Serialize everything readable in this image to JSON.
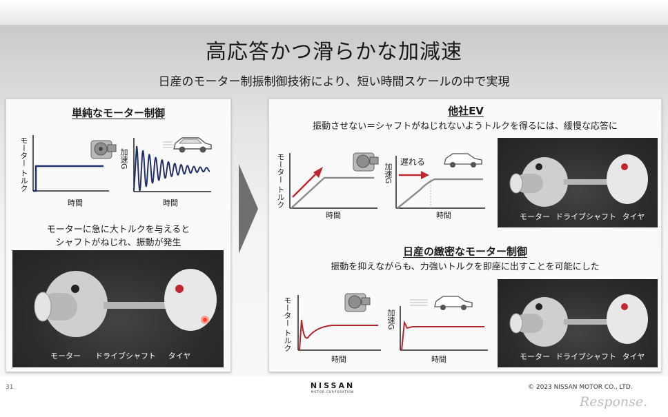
{
  "header": {
    "title": "高応答かつ滑らかな加減速",
    "subtitle": "日産のモーター制振制御技術により、短い時間スケールの中で実現"
  },
  "left_panel": {
    "title": "単純なモーター制御",
    "chart1": {
      "ylabel": "モーター トルク",
      "xlabel": "時間"
    },
    "chart2": {
      "ylabel": "加速G",
      "xlabel": "時間"
    },
    "description_line1": "モーターに急に大トルクを与えると",
    "description_line2": "シャフトがねじれ、振動が発生",
    "diagram": {
      "motor": "モーター",
      "shaft": "ドライブシャフト",
      "tire": "タイヤ"
    }
  },
  "right_top": {
    "title": "他社EV",
    "description": "振動させない＝シャフトがねじれないようトルクを得るには、緩慢な応答に",
    "chart1": {
      "ylabel": "モーター トルク",
      "xlabel": "時間"
    },
    "chart2": {
      "ylabel": "加速G",
      "xlabel": "時間",
      "annotation": "遅れる"
    },
    "diagram": {
      "motor": "モーター",
      "shaft": "ドライブシャフト",
      "tire": "タイヤ"
    }
  },
  "right_bottom": {
    "title": "日産の緻密なモーター制御",
    "description": "振動を抑えながらも、力強いトルクを即座に出すことを可能にした",
    "chart1": {
      "ylabel": "モーター トルク",
      "xlabel": "時間"
    },
    "chart2": {
      "ylabel": "加速G",
      "xlabel": "時間"
    },
    "diagram": {
      "motor": "モーター",
      "shaft": "ドライブシャフト",
      "tire": "タイヤ"
    }
  },
  "footer": {
    "page_number": "31",
    "brand": "NISSAN",
    "brand_sub": "MOTOR CORPORATION",
    "copyright": "© 2023 NISSAN MOTOR CO., LTD.",
    "watermark": "Response."
  },
  "colors": {
    "accent_red": "#c0262d",
    "navy_wave": "#1f2f6b",
    "gray_curve": "#8c8c8c"
  }
}
